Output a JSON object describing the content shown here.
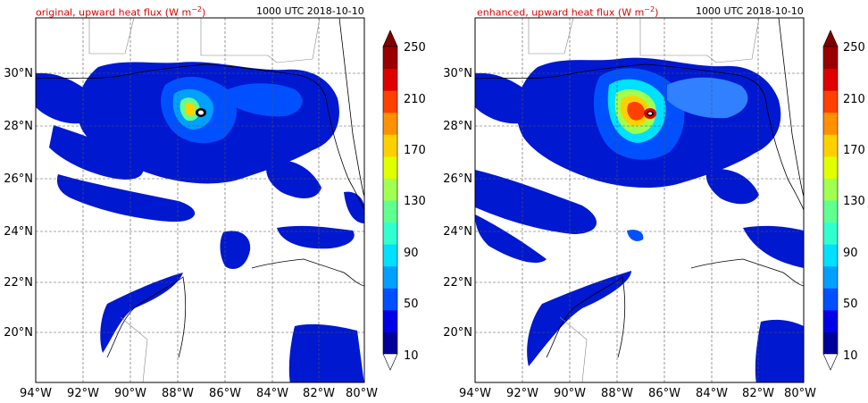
{
  "panels": [
    {
      "title": "original, upward heat flux (W m",
      "unit_exp": "−2",
      "title_close": ")",
      "time": "1000 UTC 2018-10-10"
    },
    {
      "title": "enhanced, upward heat flux (W m",
      "unit_exp": "−2",
      "title_close": ")",
      "time": "1000 UTC 2018-10-10"
    }
  ],
  "lat_labels": [
    "30°N",
    "28°N",
    "26°N",
    "24°N",
    "22°N",
    "20°N"
  ],
  "lon_labels": [
    "94°W",
    "92°W",
    "90°W",
    "88°W",
    "86°W",
    "84°W",
    "82°W",
    "80°W"
  ],
  "colorbar": {
    "ticks": [
      "250",
      "210",
      "170",
      "130",
      "90",
      "50",
      "10"
    ],
    "colors": [
      "#00009a",
      "#0000e8",
      "#0050ff",
      "#00a0ff",
      "#00e0ff",
      "#30ffd0",
      "#60ff90",
      "#a0ff50",
      "#e0ff00",
      "#ffd000",
      "#ff9000",
      "#ff4000",
      "#e00000",
      "#9a0000"
    ],
    "extend_max_color": "#800000",
    "extend_min_color": "#ffffff"
  },
  "colors": {
    "title": "#e00000",
    "flux_low": "#0018d0",
    "flux_mid": "#3080ff",
    "flux_high": "#ffd000",
    "flux_peak": "#e00000",
    "coastline": "#000000",
    "grid": "#555555"
  }
}
